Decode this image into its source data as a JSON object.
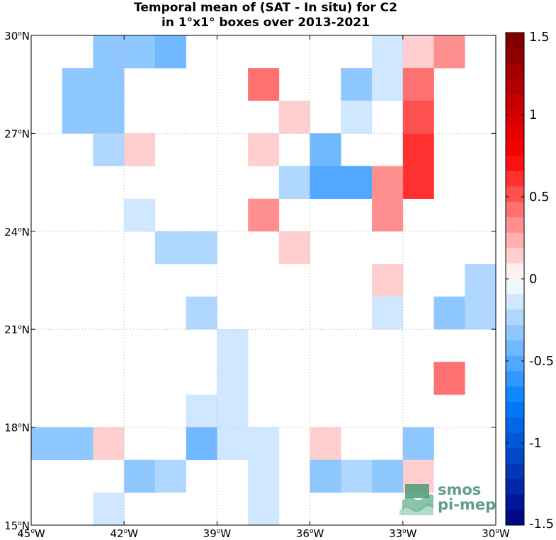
{
  "chart_data": {
    "type": "heatmap",
    "title_lines": [
      "Temporal mean of (SAT - In situ) for C2",
      "in 1°x1° boxes over 2013-2021"
    ],
    "x_ticks": [
      {
        "value": -45,
        "label": "45",
        "hemi": "W"
      },
      {
        "value": -42,
        "label": "42",
        "hemi": "W"
      },
      {
        "value": -39,
        "label": "39",
        "hemi": "W"
      },
      {
        "value": -36,
        "label": "36",
        "hemi": "W"
      },
      {
        "value": -33,
        "label": "33",
        "hemi": "W"
      },
      {
        "value": -30,
        "label": "30",
        "hemi": "W"
      }
    ],
    "y_ticks": [
      {
        "value": 15,
        "label": "15",
        "hemi": "N"
      },
      {
        "value": 18,
        "label": "18",
        "hemi": "N"
      },
      {
        "value": 21,
        "label": "21",
        "hemi": "N"
      },
      {
        "value": 24,
        "label": "24",
        "hemi": "N"
      },
      {
        "value": 27,
        "label": "27",
        "hemi": "N"
      },
      {
        "value": 30,
        "label": "30",
        "hemi": "N"
      }
    ],
    "xlim": [
      -45,
      -30
    ],
    "ylim": [
      15,
      30
    ],
    "grid": "dotted",
    "colorbar": {
      "range": [
        -1.5,
        1.5
      ],
      "levels": 32,
      "tick_values": [
        1.5,
        1,
        0.5,
        0,
        -0.5,
        -1,
        -1.5
      ],
      "tick_labels": [
        "1.5",
        "1",
        "0.5",
        "0",
        "-0.5",
        "-1",
        "-1.5"
      ]
    },
    "cells": [
      {
        "lon": -43,
        "lat": 29,
        "v": -0.3
      },
      {
        "lon": -42,
        "lat": 29,
        "v": -0.3
      },
      {
        "lon": -41,
        "lat": 29,
        "v": -0.4
      },
      {
        "lon": -34,
        "lat": 29,
        "v": -0.15
      },
      {
        "lon": -33,
        "lat": 29,
        "v": 0.15
      },
      {
        "lon": -32,
        "lat": 29,
        "v": 0.3
      },
      {
        "lon": -44,
        "lat": 28,
        "v": -0.3
      },
      {
        "lon": -43,
        "lat": 28,
        "v": -0.3
      },
      {
        "lon": -38,
        "lat": 28,
        "v": 0.45
      },
      {
        "lon": -35,
        "lat": 28,
        "v": -0.3
      },
      {
        "lon": -34,
        "lat": 28,
        "v": -0.15
      },
      {
        "lon": -33,
        "lat": 28,
        "v": 0.4
      },
      {
        "lon": -44,
        "lat": 27,
        "v": -0.3
      },
      {
        "lon": -43,
        "lat": 27,
        "v": -0.3
      },
      {
        "lon": -37,
        "lat": 27,
        "v": 0.15
      },
      {
        "lon": -35,
        "lat": 27,
        "v": -0.15
      },
      {
        "lon": -33,
        "lat": 27,
        "v": 0.55
      },
      {
        "lon": -43,
        "lat": 26,
        "v": -0.2
      },
      {
        "lon": -42,
        "lat": 26,
        "v": 0.15
      },
      {
        "lon": -38,
        "lat": 26,
        "v": 0.15
      },
      {
        "lon": -36,
        "lat": 26,
        "v": -0.4
      },
      {
        "lon": -33,
        "lat": 26,
        "v": 0.65
      },
      {
        "lon": -37,
        "lat": 25,
        "v": -0.2
      },
      {
        "lon": -36,
        "lat": 25,
        "v": -0.5
      },
      {
        "lon": -35,
        "lat": 25,
        "v": -0.5
      },
      {
        "lon": -34,
        "lat": 25,
        "v": 0.3
      },
      {
        "lon": -33,
        "lat": 25,
        "v": 0.65
      },
      {
        "lon": -42,
        "lat": 24,
        "v": -0.15
      },
      {
        "lon": -38,
        "lat": 24,
        "v": 0.35
      },
      {
        "lon": -34,
        "lat": 24,
        "v": 0.3
      },
      {
        "lon": -41,
        "lat": 23,
        "v": -0.2
      },
      {
        "lon": -40,
        "lat": 23,
        "v": -0.2
      },
      {
        "lon": -37,
        "lat": 23,
        "v": 0.15
      },
      {
        "lon": -34,
        "lat": 22,
        "v": 0.15
      },
      {
        "lon": -31,
        "lat": 22,
        "v": -0.2
      },
      {
        "lon": -40,
        "lat": 21,
        "v": -0.2
      },
      {
        "lon": -34,
        "lat": 21,
        "v": -0.15
      },
      {
        "lon": -32,
        "lat": 21,
        "v": -0.35
      },
      {
        "lon": -31,
        "lat": 21,
        "v": -0.2
      },
      {
        "lon": -39,
        "lat": 20,
        "v": -0.15
      },
      {
        "lon": -39,
        "lat": 19,
        "v": -0.15
      },
      {
        "lon": -32,
        "lat": 19,
        "v": 0.45
      },
      {
        "lon": -40,
        "lat": 18,
        "v": -0.15
      },
      {
        "lon": -39,
        "lat": 18,
        "v": -0.15
      },
      {
        "lon": -45,
        "lat": 17,
        "v": -0.3
      },
      {
        "lon": -44,
        "lat": 17,
        "v": -0.3
      },
      {
        "lon": -43,
        "lat": 17,
        "v": 0.15
      },
      {
        "lon": -40,
        "lat": 17,
        "v": -0.4
      },
      {
        "lon": -39,
        "lat": 17,
        "v": -0.15
      },
      {
        "lon": -38,
        "lat": 17,
        "v": -0.15
      },
      {
        "lon": -36,
        "lat": 17,
        "v": 0.15
      },
      {
        "lon": -33,
        "lat": 17,
        "v": -0.3
      },
      {
        "lon": -42,
        "lat": 16,
        "v": -0.3
      },
      {
        "lon": -41,
        "lat": 16,
        "v": -0.2
      },
      {
        "lon": -38,
        "lat": 16,
        "v": -0.15
      },
      {
        "lon": -36,
        "lat": 16,
        "v": -0.3
      },
      {
        "lon": -35,
        "lat": 16,
        "v": -0.2
      },
      {
        "lon": -34,
        "lat": 16,
        "v": -0.3
      },
      {
        "lon": -33,
        "lat": 16,
        "v": 0.15
      },
      {
        "lon": -43,
        "lat": 15,
        "v": -0.15
      },
      {
        "lon": -38,
        "lat": 15,
        "v": -0.15
      }
    ]
  },
  "logo": {
    "line1": "smos",
    "line2": "pi-mep"
  }
}
